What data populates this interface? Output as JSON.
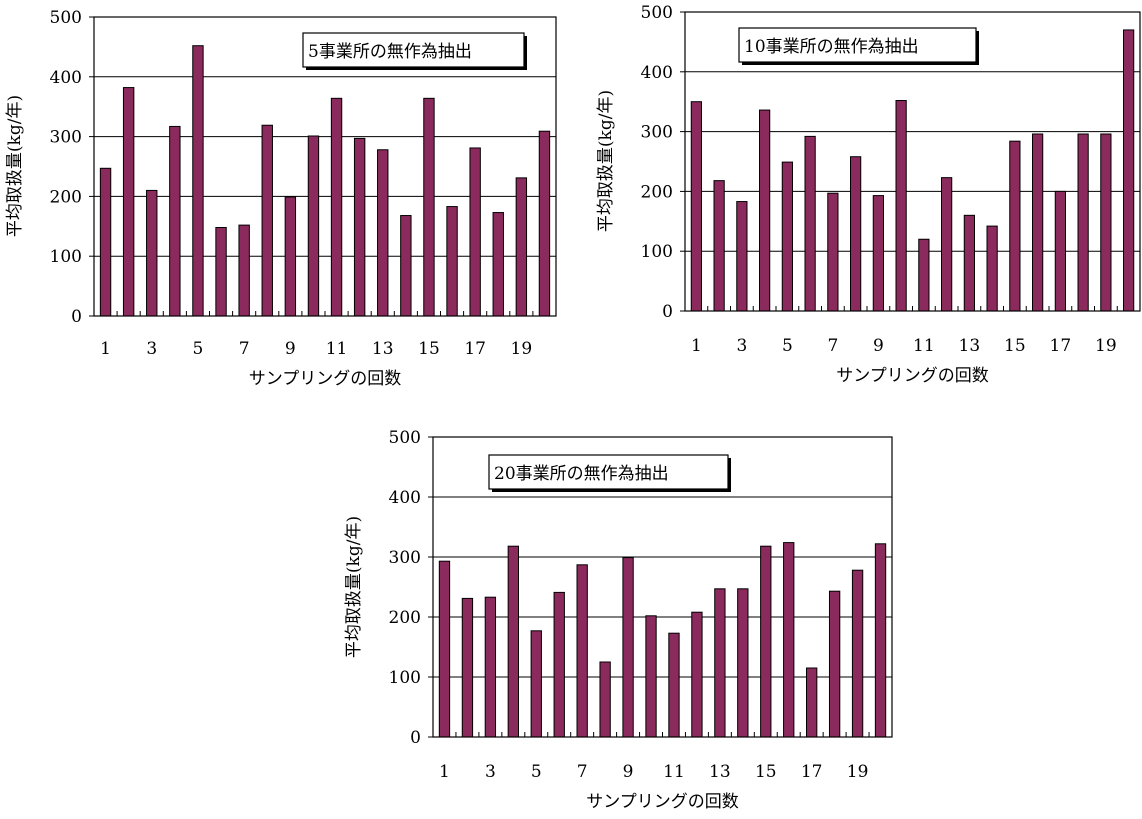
{
  "chart_data": [
    {
      "type": "bar",
      "title": "5事業所の無作為抽出",
      "xlabel": "サンプリングの回数",
      "ylabel": "平均取扱量(kg/年)",
      "ylim": [
        0,
        500
      ],
      "yticks": [
        "0",
        "100",
        "200",
        "300",
        "400",
        "500"
      ],
      "xtick_labels": [
        "1",
        "3",
        "5",
        "7",
        "9",
        "11",
        "13",
        "15",
        "17",
        "19"
      ],
      "categories": [
        1,
        2,
        3,
        4,
        5,
        6,
        7,
        8,
        9,
        10,
        11,
        12,
        13,
        14,
        15,
        16,
        17,
        18,
        19,
        20
      ],
      "values": [
        247,
        382,
        210,
        317,
        452,
        148,
        152,
        319,
        199,
        301,
        364,
        297,
        278,
        168,
        364,
        183,
        281,
        173,
        231,
        309
      ],
      "bar_color": "#8b2a5c",
      "grid": true
    },
    {
      "type": "bar",
      "title": "10事業所の無作為抽出",
      "xlabel": "サンプリングの回数",
      "ylabel": "平均取扱量(kg/年)",
      "ylim": [
        0,
        500
      ],
      "yticks": [
        "0",
        "100",
        "200",
        "300",
        "400",
        "500"
      ],
      "xtick_labels": [
        "1",
        "3",
        "5",
        "7",
        "9",
        "11",
        "13",
        "15",
        "17",
        "19"
      ],
      "categories": [
        1,
        2,
        3,
        4,
        5,
        6,
        7,
        8,
        9,
        10,
        11,
        12,
        13,
        14,
        15,
        16,
        17,
        18,
        19,
        20
      ],
      "values": [
        350,
        218,
        183,
        336,
        249,
        292,
        197,
        258,
        193,
        352,
        120,
        223,
        160,
        142,
        284,
        296,
        200,
        296,
        296,
        470
      ],
      "bar_color": "#8b2a5c",
      "grid": true
    },
    {
      "type": "bar",
      "title": "20事業所の無作為抽出",
      "xlabel": "サンプリングの回数",
      "ylabel": "平均取扱量(kg/年)",
      "ylim": [
        0,
        500
      ],
      "yticks": [
        "0",
        "100",
        "200",
        "300",
        "400",
        "500"
      ],
      "xtick_labels": [
        "1",
        "3",
        "5",
        "7",
        "9",
        "11",
        "13",
        "15",
        "17",
        "19"
      ],
      "categories": [
        1,
        2,
        3,
        4,
        5,
        6,
        7,
        8,
        9,
        10,
        11,
        12,
        13,
        14,
        15,
        16,
        17,
        18,
        19,
        20
      ],
      "values": [
        293,
        231,
        233,
        318,
        177,
        241,
        287,
        125,
        299,
        202,
        173,
        208,
        247,
        247,
        318,
        324,
        115,
        243,
        278,
        322
      ],
      "bar_color": "#8b2a5c",
      "grid": true
    }
  ]
}
